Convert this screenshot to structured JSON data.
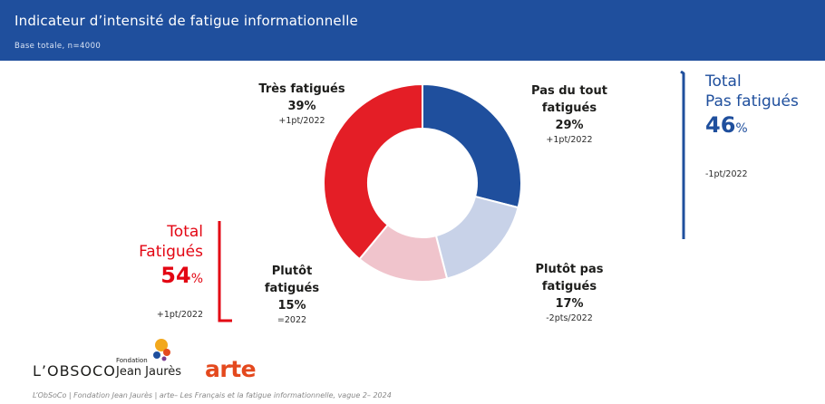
{
  "header": {
    "title": "Indicateur d’intensité de fatigue informationnelle",
    "subtitle": "Base totale, n=4000"
  },
  "chart_data": {
    "type": "pie",
    "categories": [
      "Pas du tout fatigués",
      "Plutôt pas fatigués",
      "Plutôt fatigués",
      "Très fatigués"
    ],
    "values": [
      29,
      17,
      15,
      39
    ],
    "unit": "%",
    "colors": [
      "#1f4f9d",
      "#c8d2e8",
      "#f0c4cc",
      "#e41e26"
    ],
    "style": "donut",
    "labels": [
      {
        "name": "Pas du tout fatigués",
        "pct": "29%",
        "delta": "+1pt/2022"
      },
      {
        "name": "Plutôt pas fatigués",
        "pct": "17%",
        "delta": "-2pts/2022"
      },
      {
        "name": "Plutôt fatigués",
        "pct": "15%",
        "delta": "=2022"
      },
      {
        "name": "Très fatigués",
        "pct": "39%",
        "delta": "+1pt/2022"
      }
    ],
    "totals": {
      "pas_fatigues": {
        "line1": "Total",
        "line2": "Pas fatigués",
        "value": "46",
        "unit": "%",
        "delta": "-1pt/2022",
        "color": "#1f4f9d"
      },
      "fatigues": {
        "line1": "Total",
        "line2": "Fatigués",
        "value": "54",
        "unit": "%",
        "delta": "+1pt/2022",
        "color": "#e30613"
      }
    }
  },
  "labels_display": {
    "pas_du_tout_l1": "Pas du tout",
    "pas_du_tout_l2": "fatigués",
    "plutot_pas_l1": "Plutôt pas",
    "plutot_pas_l2": "fatigués",
    "plutot_l1": "Plutôt",
    "plutot_l2": "fatigués",
    "tres": "Très fatigués"
  },
  "logos": {
    "obsoco": "L’OBSOCO",
    "fondation_small": "Fondation",
    "fondation_big": "Jean Jaurès",
    "arte": "arte"
  },
  "footer": "L’ObSoCo | Fondation Jean Jaurès | arte– Les Français et la fatigue informationnelle, vague 2– 2024"
}
